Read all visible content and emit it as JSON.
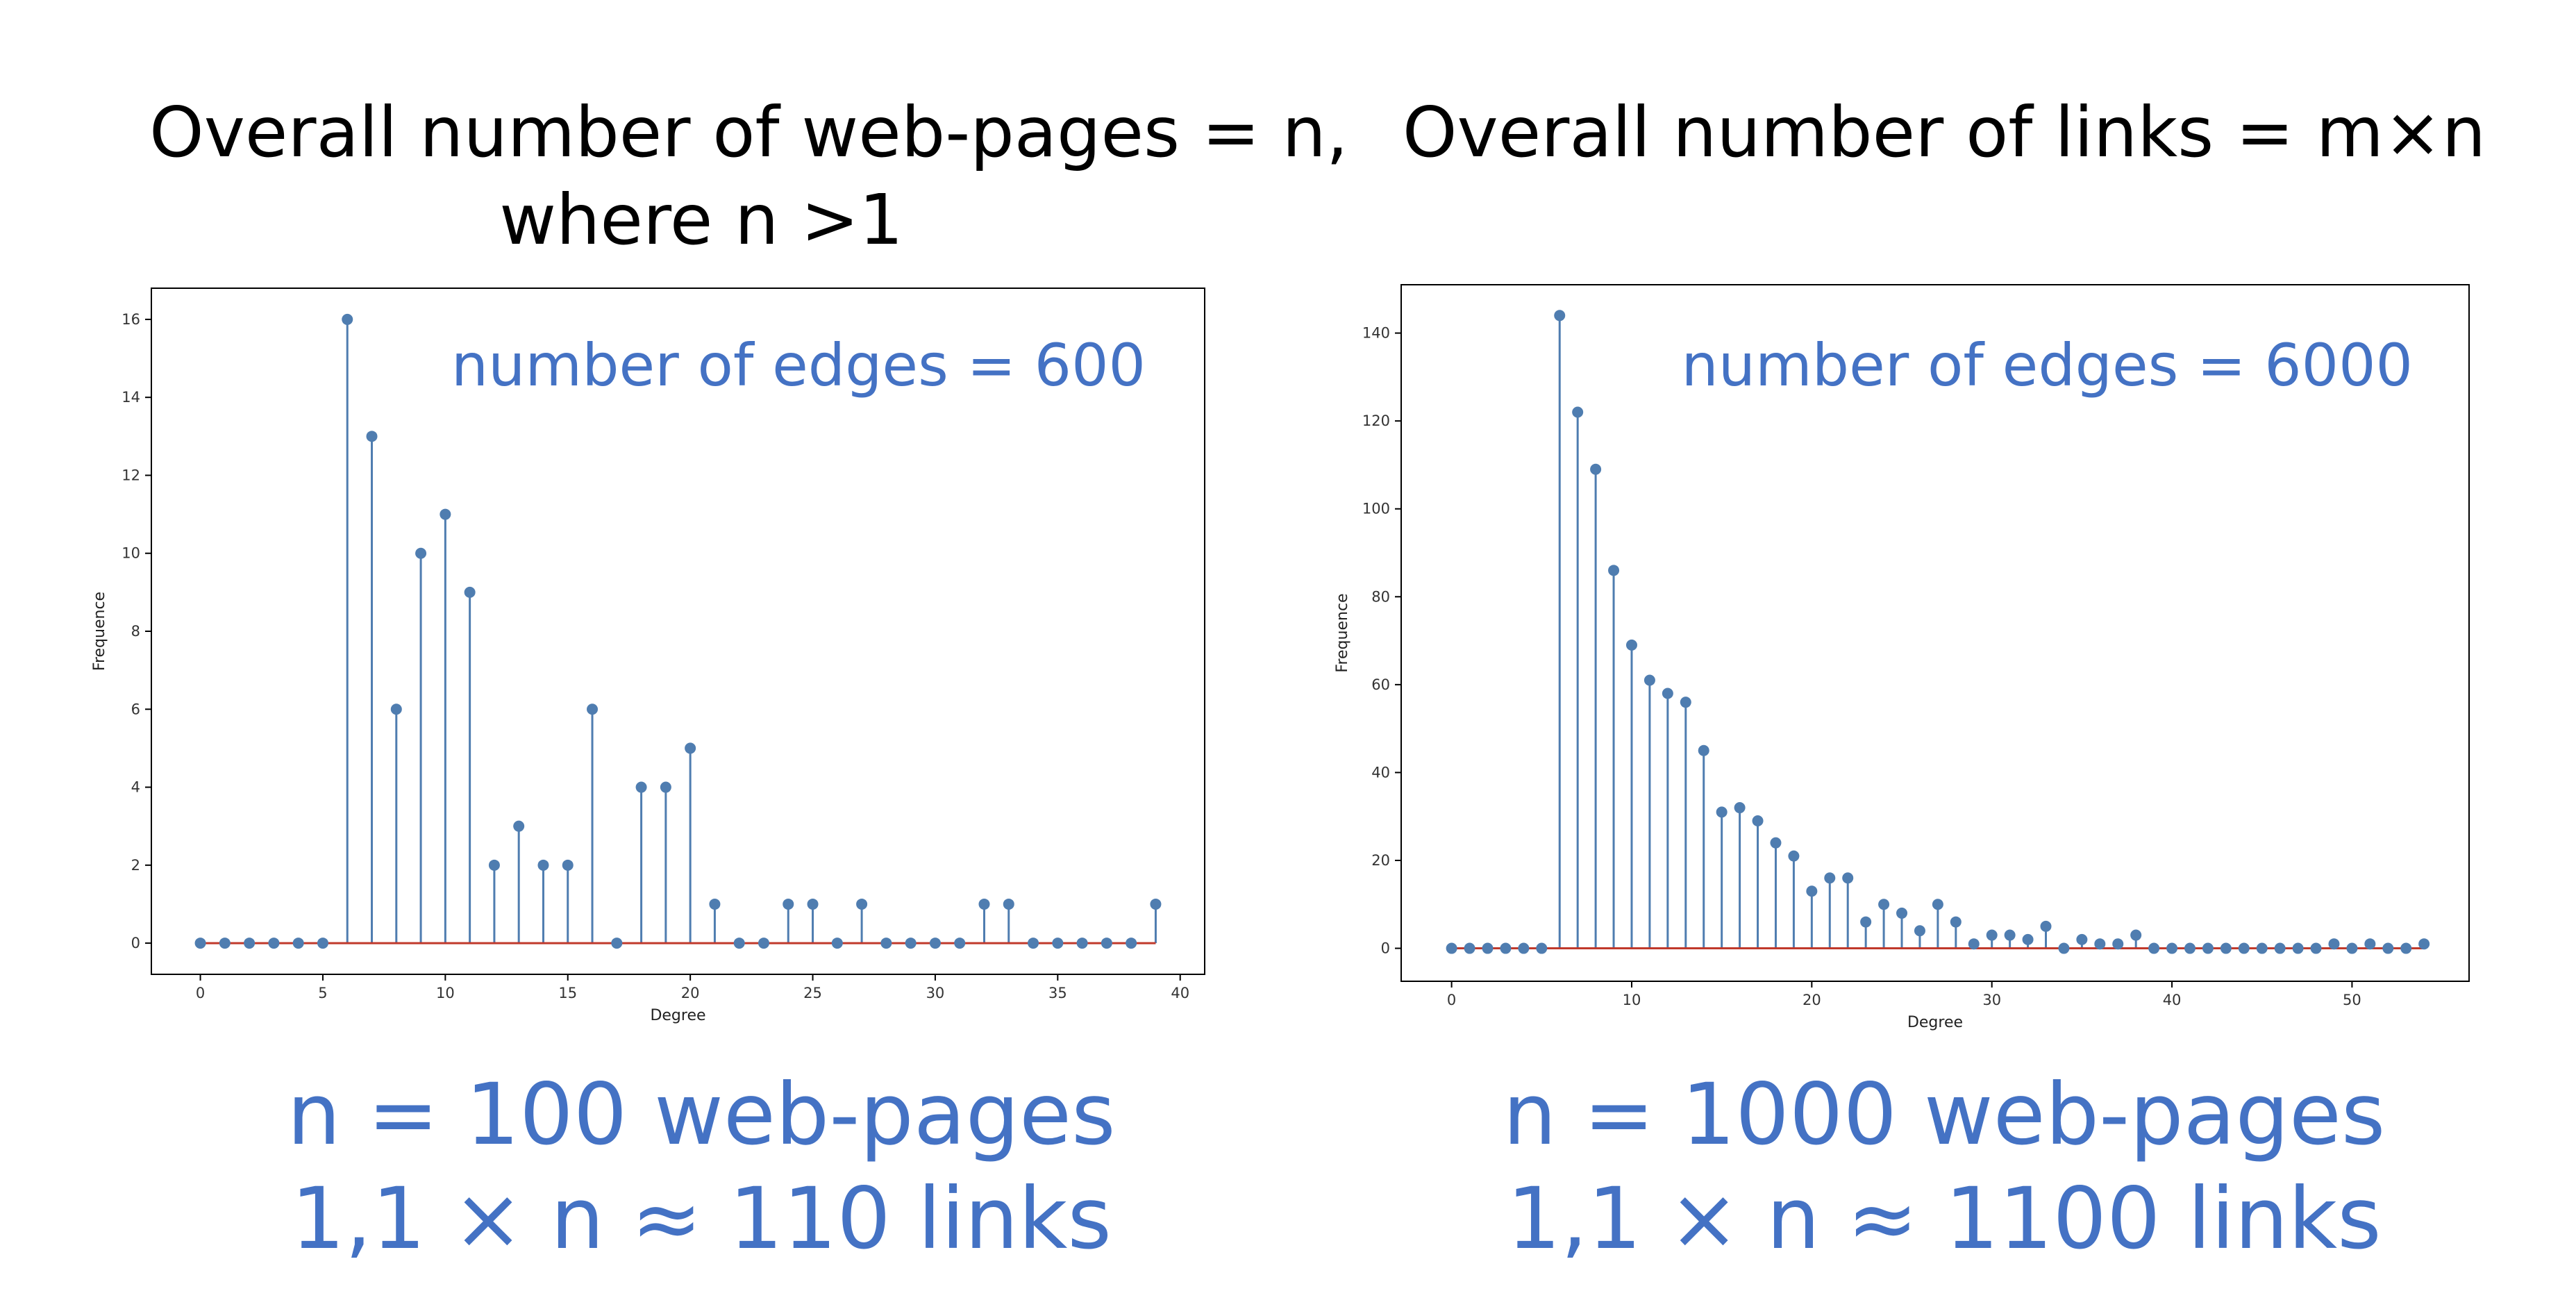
{
  "headings": [
    {
      "line1": "Overall number of web-pages = n,",
      "line2": "where n >1"
    },
    {
      "line1": "Overall number of links = m×n",
      "line2": ""
    }
  ],
  "summaries": [
    {
      "line1": "n = 100 web-pages",
      "line2": "1,1 × n ≈ 110 links"
    },
    {
      "line1": "n = 1000 web-pages",
      "line2": "1,1 × n ≈ 1100 links"
    }
  ],
  "colors": {
    "stem": "#4F7DB0",
    "baseline": "#C0392B",
    "annotation": "#4472C4",
    "frame": "#000000"
  },
  "chart_data": [
    {
      "type": "stem",
      "xlabel": "Degree",
      "ylabel": "Frequence",
      "annotation": "number of edges = 600",
      "xlim": [
        -2,
        41
      ],
      "ylim": [
        -0.8,
        16.8
      ],
      "xticks": [
        0,
        5,
        10,
        15,
        20,
        25,
        30,
        35,
        40
      ],
      "yticks": [
        0,
        2,
        4,
        6,
        8,
        10,
        12,
        14,
        16
      ],
      "x": [
        0,
        1,
        2,
        3,
        4,
        5,
        6,
        7,
        8,
        9,
        10,
        11,
        12,
        13,
        14,
        15,
        16,
        17,
        18,
        19,
        20,
        21,
        22,
        23,
        24,
        25,
        26,
        27,
        28,
        29,
        30,
        31,
        32,
        33,
        34,
        35,
        36,
        37,
        38,
        39
      ],
      "y": [
        0,
        0,
        0,
        0,
        0,
        0,
        16,
        13,
        6,
        10,
        11,
        9,
        2,
        3,
        2,
        2,
        6,
        0,
        4,
        4,
        5,
        1,
        0,
        0,
        1,
        1,
        0,
        1,
        0,
        0,
        0,
        0,
        1,
        1,
        0,
        0,
        0,
        0,
        0,
        1
      ]
    },
    {
      "type": "stem",
      "xlabel": "Degree",
      "ylabel": "Frequence",
      "annotation": "number of edges = 6000",
      "xlim": [
        -2.8,
        56.5
      ],
      "ylim": [
        -7.5,
        151
      ],
      "xticks": [
        0,
        10,
        20,
        30,
        40,
        50
      ],
      "yticks": [
        0,
        20,
        40,
        60,
        80,
        100,
        120,
        140
      ],
      "x": [
        0,
        1,
        2,
        3,
        4,
        5,
        6,
        7,
        8,
        9,
        10,
        11,
        12,
        13,
        14,
        15,
        16,
        17,
        18,
        19,
        20,
        21,
        22,
        23,
        24,
        25,
        26,
        27,
        28,
        29,
        30,
        31,
        32,
        33,
        34,
        35,
        36,
        37,
        38,
        39,
        40,
        41,
        42,
        43,
        44,
        45,
        46,
        47,
        48,
        49,
        50,
        51,
        52,
        53,
        54
      ],
      "y": [
        0,
        0,
        0,
        0,
        0,
        0,
        144,
        122,
        109,
        86,
        69,
        61,
        58,
        56,
        45,
        31,
        32,
        29,
        24,
        21,
        13,
        16,
        16,
        6,
        10,
        8,
        4,
        10,
        6,
        1,
        3,
        3,
        2,
        5,
        0,
        2,
        1,
        1,
        3,
        0,
        0,
        0,
        0,
        0,
        0,
        0,
        0,
        0,
        0,
        1,
        0,
        1,
        0,
        0,
        1
      ]
    }
  ]
}
